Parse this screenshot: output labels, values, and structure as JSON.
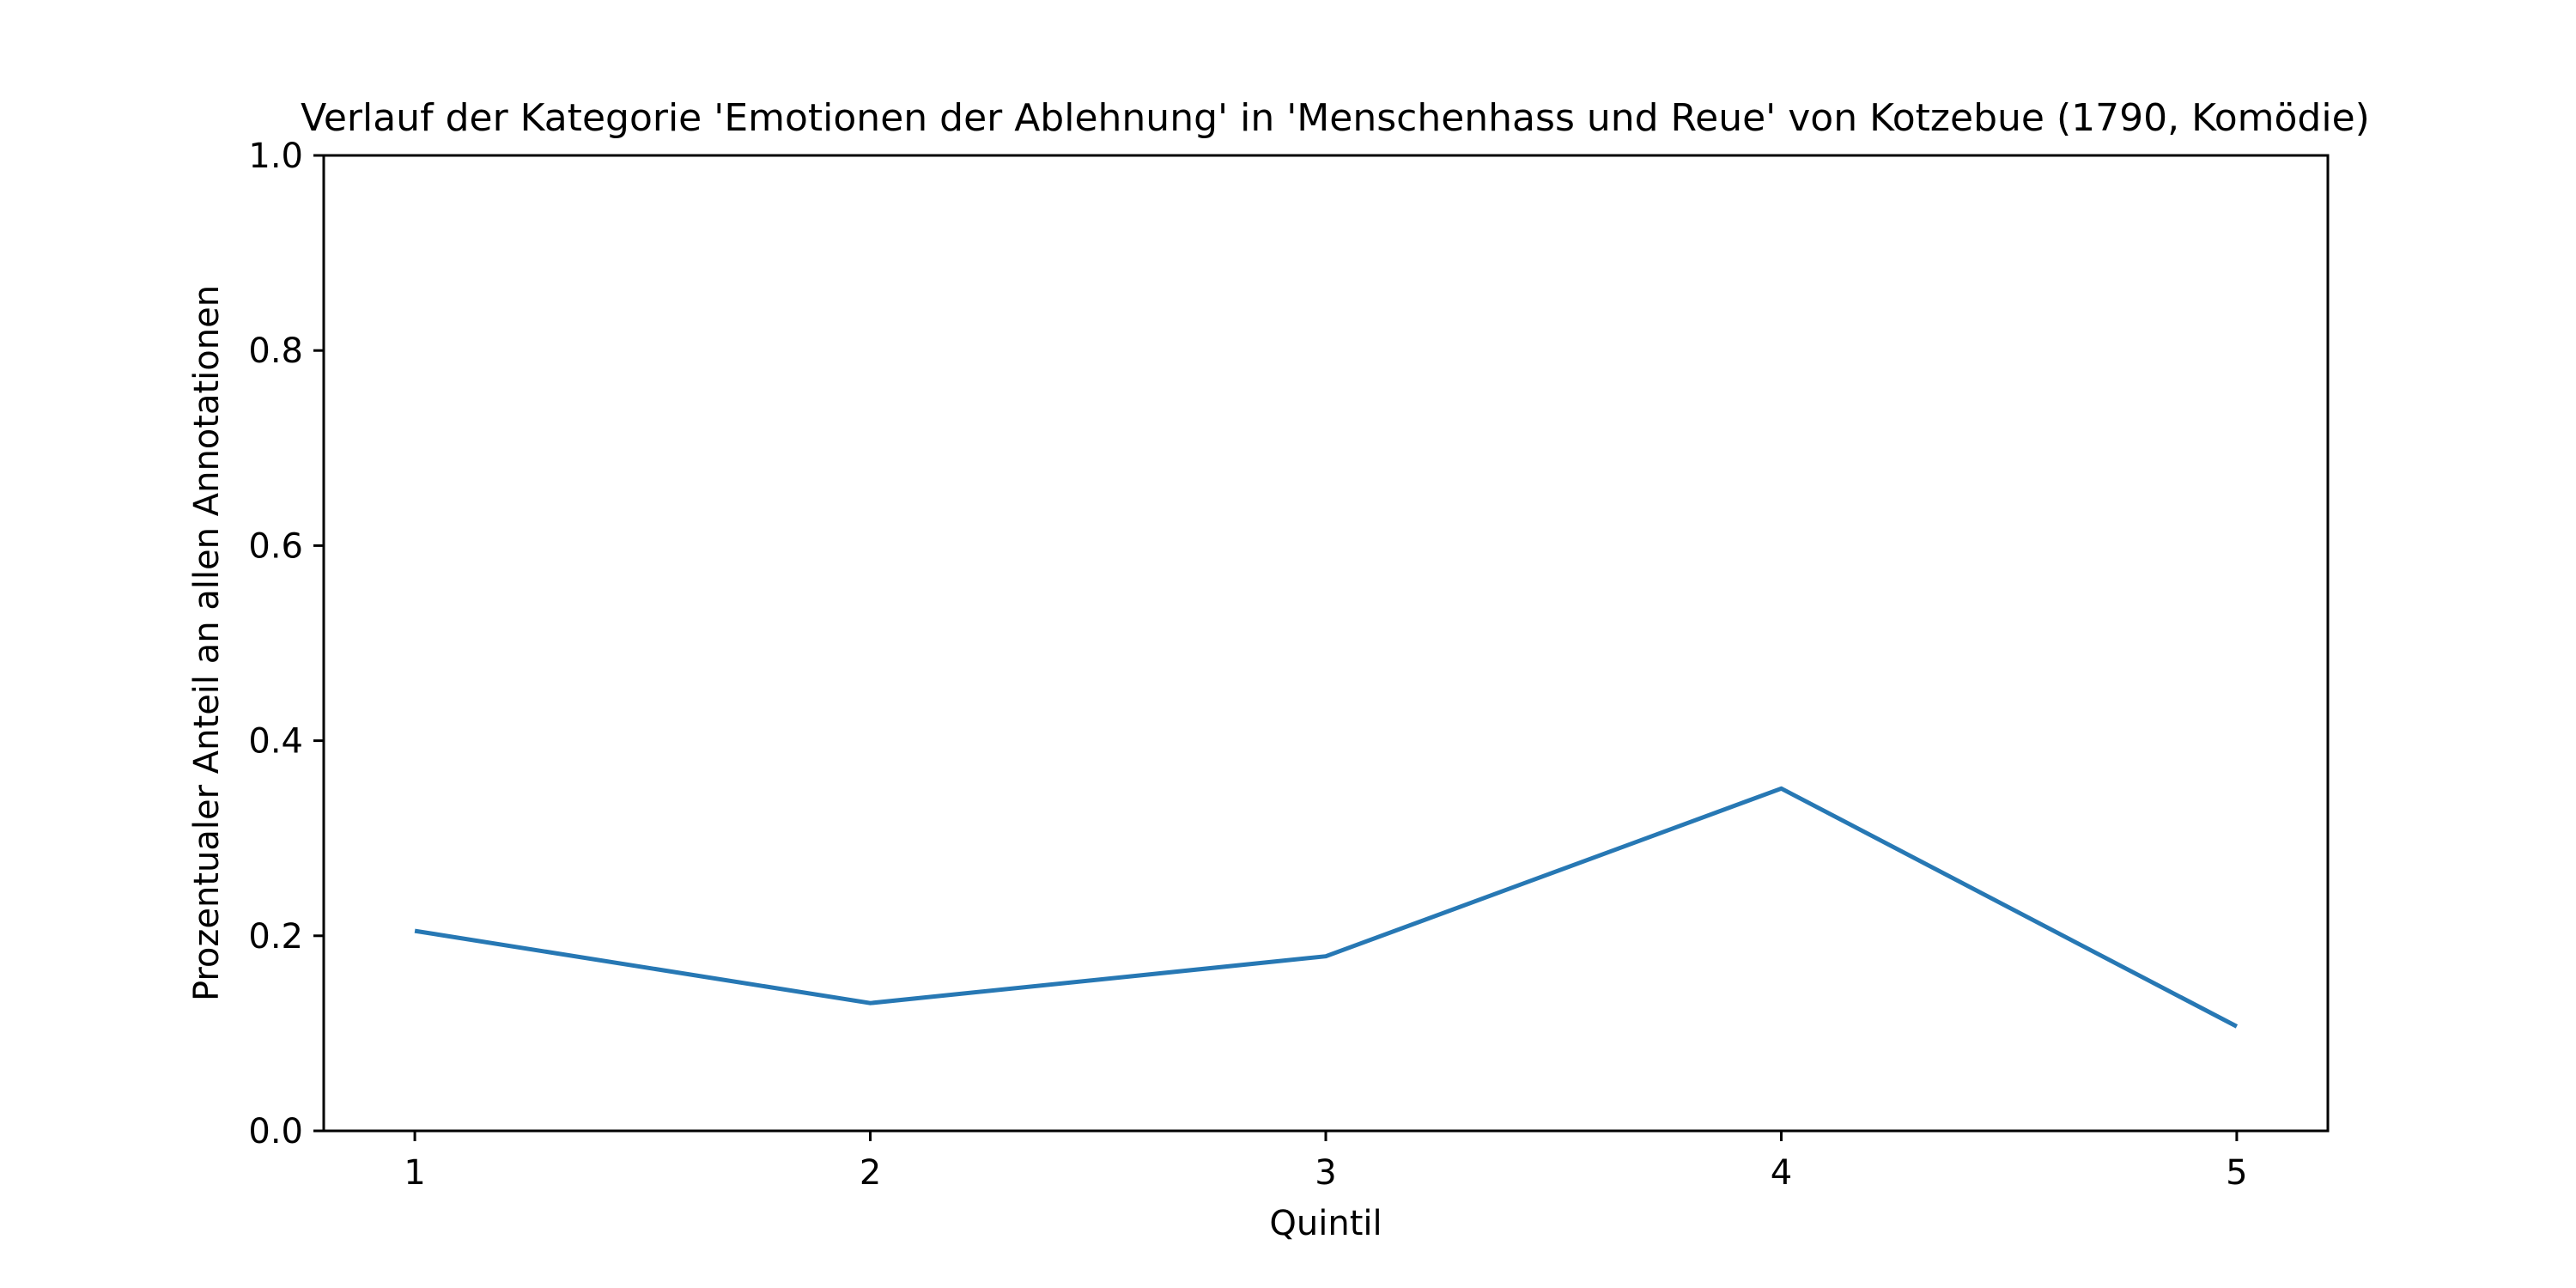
{
  "chart_data": {
    "type": "line",
    "title": "Verlauf der Kategorie 'Emotionen der Ablehnung' in 'Menschenhass und Reue' von Kotzebue (1790, Komödie)",
    "xlabel": "Quintil",
    "ylabel": "Prozentualer Anteil an allen Annotationen",
    "x": [
      1,
      2,
      3,
      4,
      5
    ],
    "series": [
      {
        "values": [
          0.205,
          0.131,
          0.179,
          0.351,
          0.107
        ]
      }
    ],
    "xticks": [
      "1",
      "2",
      "3",
      "4",
      "5"
    ],
    "yticks": [
      "0.0",
      "0.2",
      "0.4",
      "0.6",
      "0.8",
      "1.0"
    ],
    "xlim": [
      0.8,
      5.2
    ],
    "ylim": [
      0.0,
      1.0
    ],
    "grid": false,
    "line_color": "#2778b4"
  }
}
